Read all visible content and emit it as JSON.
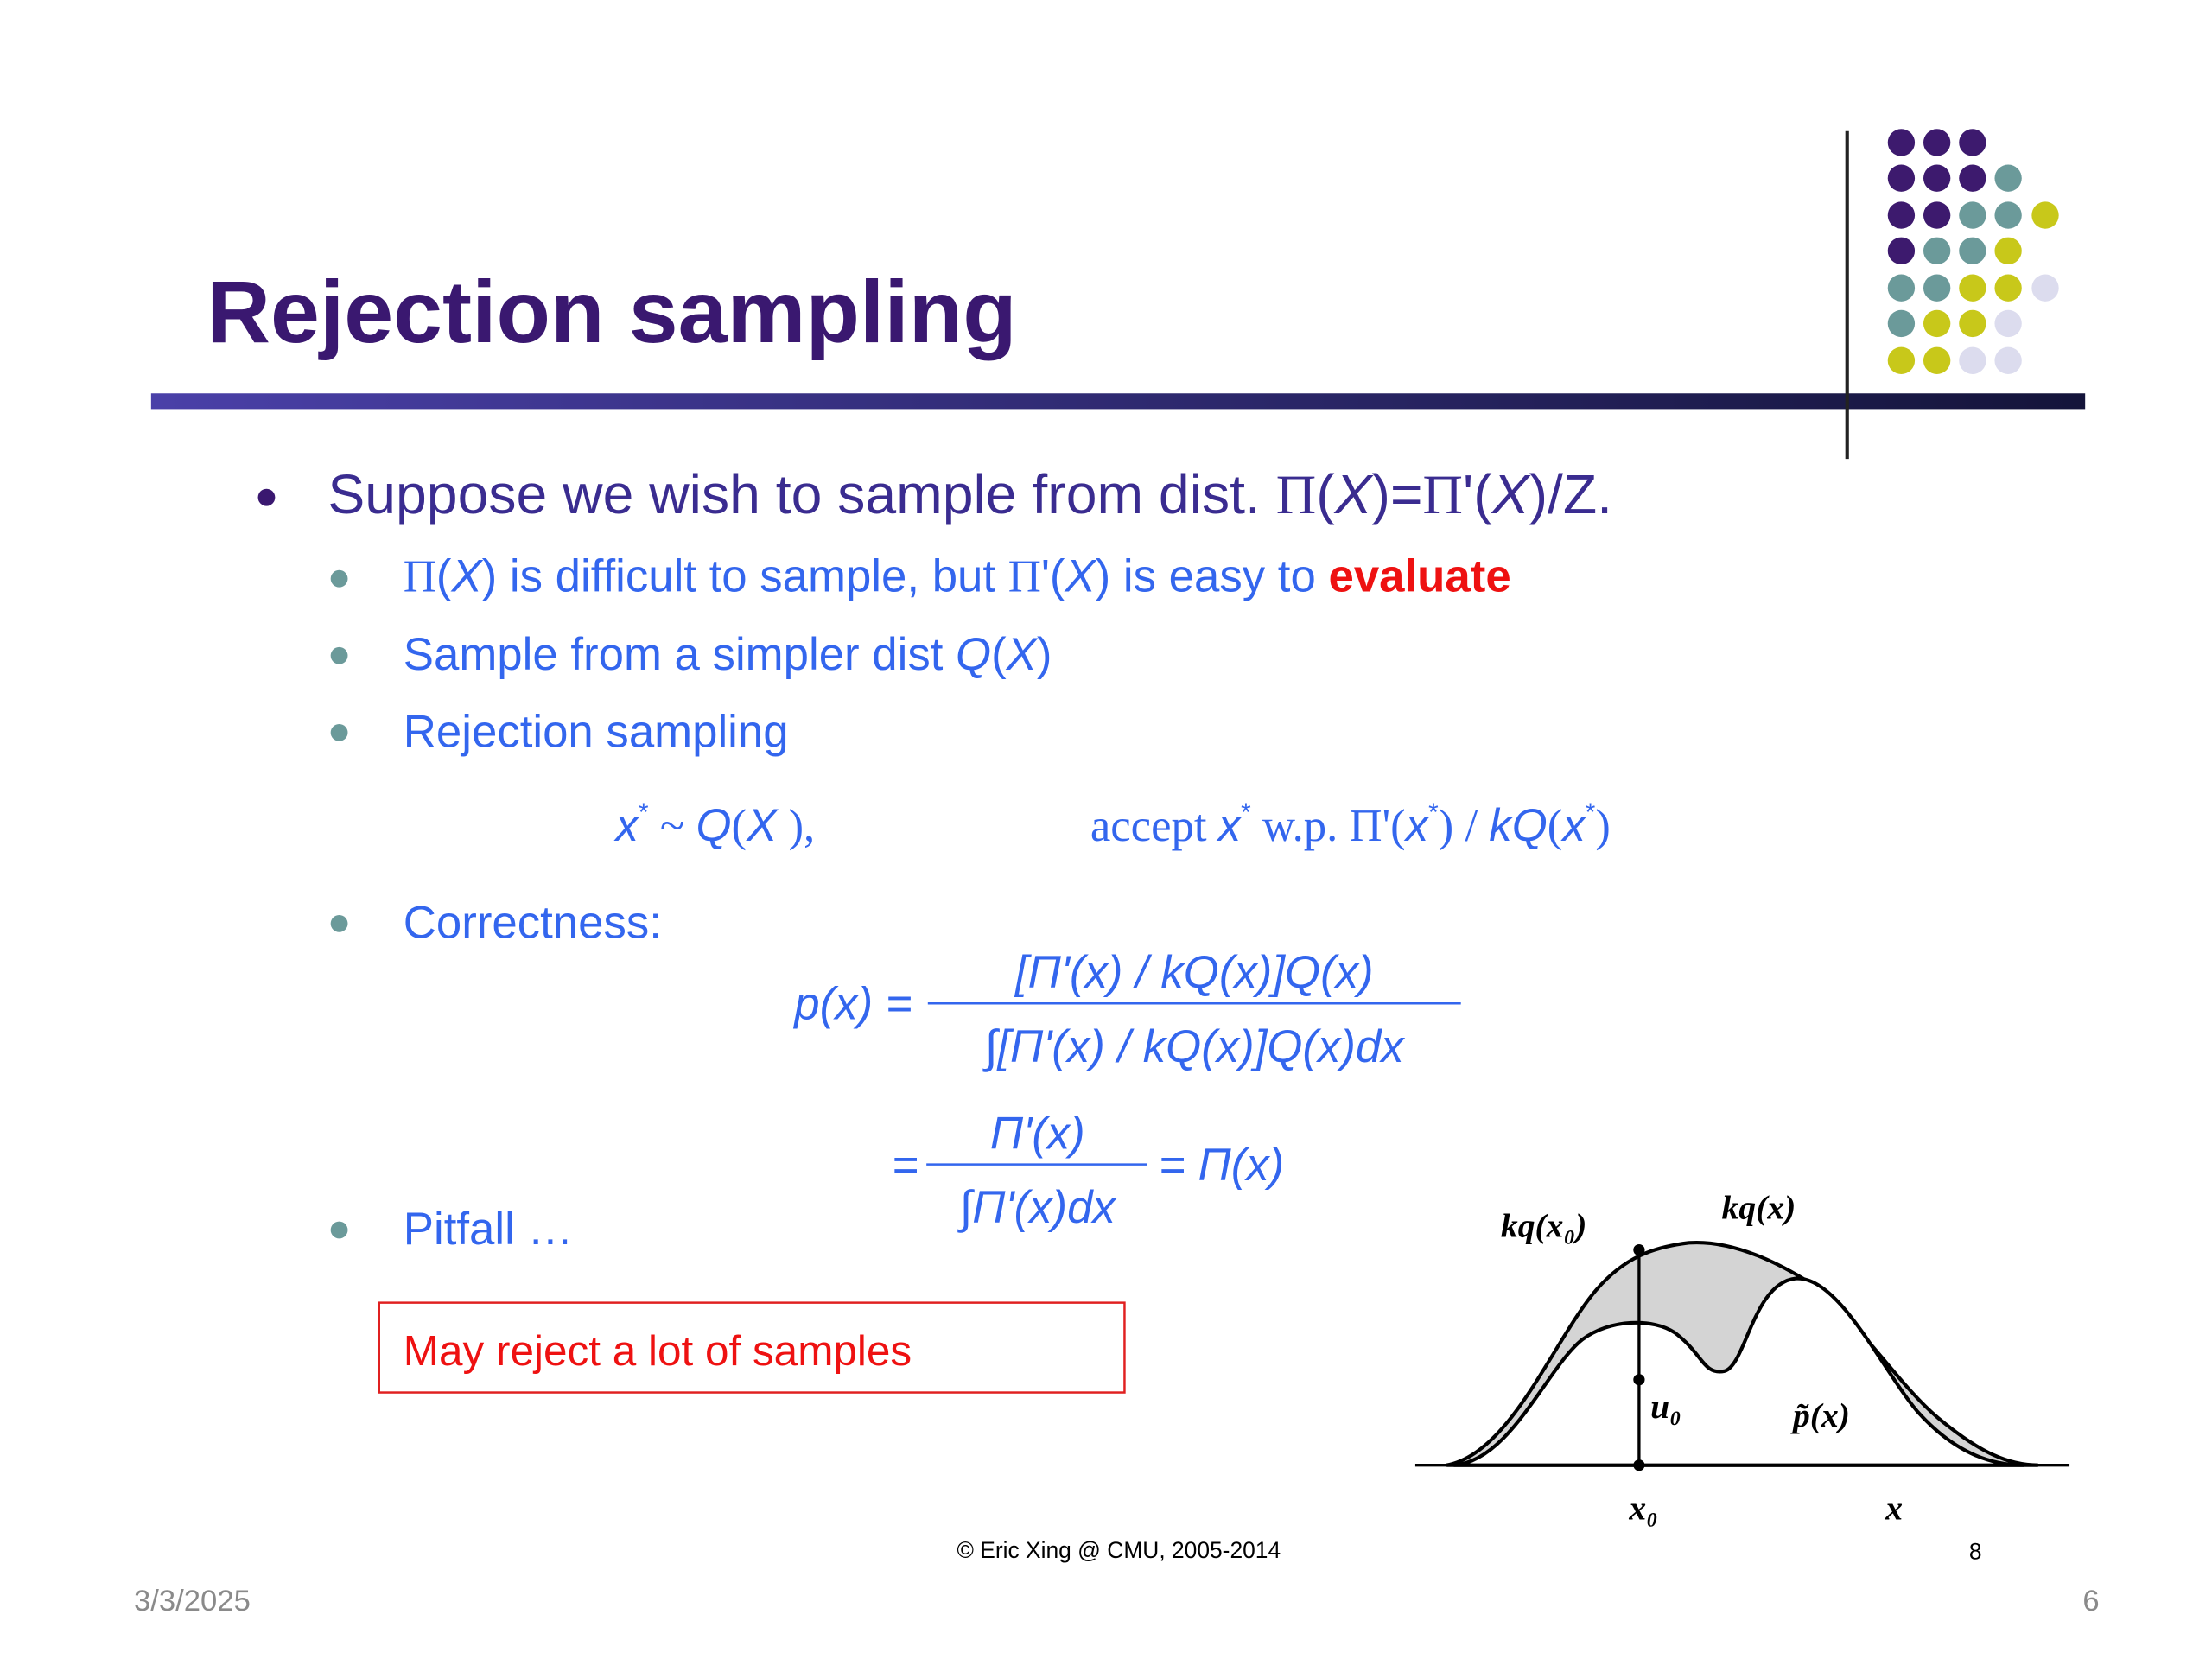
{
  "title": "Rejection sampling",
  "main_bullet": [
    "Suppose we wish to sample from dist. ",
    "Π",
    "(",
    "X",
    ")=",
    "Π",
    "'",
    "(",
    "X",
    ")/Z."
  ],
  "sub_bullets": [
    [
      "Π",
      "(",
      "X",
      ") is difficult to sample, but ",
      "Π",
      "'",
      "(",
      "X",
      ") is easy to ",
      "evaluate"
    ],
    [
      "Sample from a simpler dist ",
      "Q",
      "(",
      "X",
      ")"
    ],
    [
      "Rejection sampling"
    ],
    [
      "Correctness:"
    ],
    [
      "Pitfall …"
    ]
  ],
  "sampling_formula": {
    "left": [
      "x",
      "*",
      " ~ ",
      "Q",
      "(",
      "X",
      " ),"
    ],
    "right": [
      "accept ",
      "x",
      "*",
      " w.p. Π'(",
      "x",
      "*",
      ") / ",
      "kQ",
      "(",
      "x",
      "*",
      ")"
    ]
  },
  "correctness_formula": {
    "lhs": "p(x) =",
    "numerator1": "[Π'(x) / kQ(x)]Q(x)",
    "denominator1": "∫[Π'(x) / kQ(x)]Q(x)dx",
    "eq2": "=",
    "numerator2": "Π'(x)",
    "denominator2": "∫Π'(x)dx",
    "rhs2": "= Π(x)"
  },
  "callout": "May reject a lot of samples",
  "figure_labels": [
    "kq(x₀)",
    "kq(x)",
    "u₀",
    "p̃(x)",
    "x₀",
    "x"
  ],
  "footer": {
    "credit": "© Eric Xing @ CMU, 2005-2014",
    "source_page": "8",
    "date": "3/3/2025",
    "page_number": "6"
  }
}
